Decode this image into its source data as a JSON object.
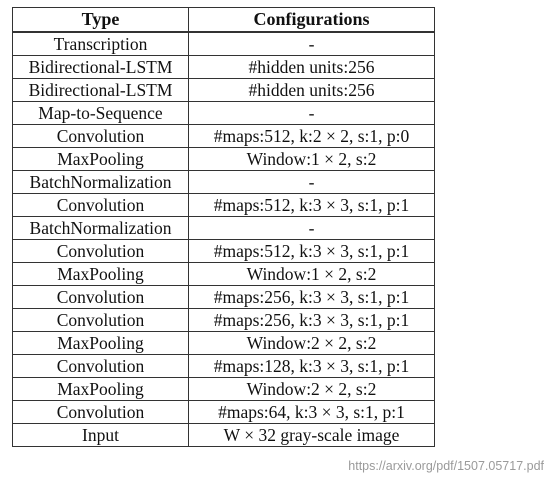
{
  "table": {
    "headers": {
      "type": "Type",
      "config": "Configurations"
    },
    "rows": [
      {
        "type": "Transcription",
        "config": "-"
      },
      {
        "type": "Bidirectional-LSTM",
        "config": "#hidden units:256"
      },
      {
        "type": "Bidirectional-LSTM",
        "config": "#hidden units:256"
      },
      {
        "type": "Map-to-Sequence",
        "config": "-"
      },
      {
        "type": "Convolution",
        "config": "#maps:512, k:2 × 2, s:1, p:0"
      },
      {
        "type": "MaxPooling",
        "config": "Window:1 × 2, s:2"
      },
      {
        "type": "BatchNormalization",
        "config": "-"
      },
      {
        "type": "Convolution",
        "config": "#maps:512, k:3 × 3, s:1, p:1"
      },
      {
        "type": "BatchNormalization",
        "config": "-"
      },
      {
        "type": "Convolution",
        "config": "#maps:512, k:3 × 3, s:1, p:1"
      },
      {
        "type": "MaxPooling",
        "config": "Window:1 × 2, s:2"
      },
      {
        "type": "Convolution",
        "config": "#maps:256, k:3 × 3, s:1, p:1"
      },
      {
        "type": "Convolution",
        "config": "#maps:256, k:3 × 3, s:1, p:1"
      },
      {
        "type": "MaxPooling",
        "config": "Window:2 × 2, s:2"
      },
      {
        "type": "Convolution",
        "config": "#maps:128, k:3 × 3, s:1, p:1"
      },
      {
        "type": "MaxPooling",
        "config": "Window:2 × 2, s:2"
      },
      {
        "type": "Convolution",
        "config": "#maps:64, k:3 × 3, s:1, p:1"
      },
      {
        "type": "Input",
        "config": "W × 32 gray-scale image"
      }
    ]
  },
  "source_url": "https://arxiv.org/pdf/1507.05717.pdf"
}
